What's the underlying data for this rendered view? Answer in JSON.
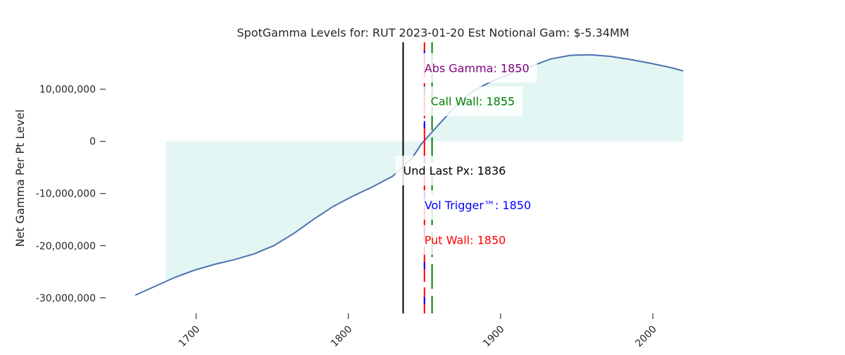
{
  "chart_data": {
    "type": "area",
    "title": "SpotGamma Levels for: RUT  2023-01-20 Est Notional Gam: $-5.34MM",
    "xlabel": "",
    "ylabel": "Net Gamma Per Pt Level",
    "xlim": [
      1660,
      2080
    ],
    "ylim": [
      -33000000,
      19000000
    ],
    "x_ticks": [
      1700,
      1800,
      1900,
      2000
    ],
    "y_ticks": [
      10000000,
      0,
      -10000000,
      -20000000,
      -30000000
    ],
    "y_tick_labels": [
      "10,000,000",
      "0",
      "-10,000,000",
      "-20,000,000",
      "-30,000,000"
    ],
    "grid": false,
    "fill_color": "#e3f6f3",
    "line_color": "#4c72b0",
    "series": [
      {
        "x": [
          1660,
          1673,
          1686,
          1699,
          1712,
          1725,
          1738,
          1751,
          1764,
          1777,
          1790,
          1803,
          1816,
          1829,
          1842,
          1848,
          1855,
          1868,
          1881,
          1894,
          1907,
          1920,
          1933,
          1946,
          1959,
          1972,
          1985,
          1998,
          2011,
          2020
        ],
        "y": [
          -29500000,
          -27800000,
          -26100000,
          -24700000,
          -23600000,
          -22700000,
          -21600000,
          -20000000,
          -17700000,
          -15000000,
          -12500000,
          -10500000,
          -8700000,
          -6700000,
          -3200000,
          -500000,
          1800000,
          6000000,
          9500000,
          11500000,
          13000000,
          14400000,
          15800000,
          16500000,
          16600000,
          16300000,
          15700000,
          15000000,
          14200000,
          13500000
        ]
      }
    ],
    "levels": [
      {
        "name": "Und Last Px",
        "label": "Und Last Px: 1836",
        "value": 1836,
        "color": "#000000",
        "style": "solid",
        "label_y": -5600000
      },
      {
        "name": "Abs Gamma",
        "label": "Abs Gamma: 1850",
        "value": 1850,
        "color": "#800080",
        "style": "dashed",
        "label_y": 14100000
      },
      {
        "name": "Vol Trigger",
        "label": "Vol Trigger™: 1850",
        "value": 1850,
        "color": "#0000ff",
        "style": "dashed",
        "label_y": -12200000
      },
      {
        "name": "Put Wall",
        "label": "Put Wall: 1850",
        "value": 1850,
        "color": "#ff0000",
        "style": "dashed",
        "label_y": -18900000
      },
      {
        "name": "Call Wall",
        "label": "Call Wall: 1855",
        "value": 1855,
        "color": "#008000",
        "style": "dashed",
        "label_y": 7700000
      }
    ]
  }
}
